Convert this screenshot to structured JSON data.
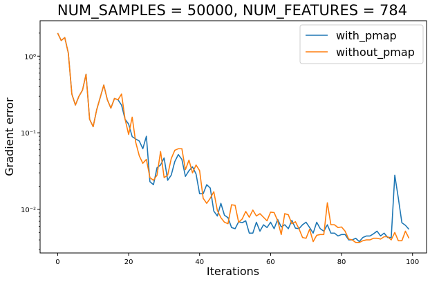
{
  "chart_data": {
    "type": "line",
    "title": "NUM_SAMPLES = 50000, NUM_FEATURES = 784",
    "xlabel": "Iterations",
    "ylabel": "Gradient error",
    "xscale": "linear",
    "yscale": "log",
    "xlim": [
      -4.95,
      103.95
    ],
    "ylim": [
      0.0027,
      2.9
    ],
    "xticks": [
      0,
      20,
      40,
      60,
      80,
      100
    ],
    "xtick_labels": [
      "0",
      "20",
      "40",
      "60",
      "80",
      "100"
    ],
    "yticks": [
      0.01,
      0.1,
      1
    ],
    "ytick_labels": [
      "10⁻²",
      "10⁻¹",
      "10⁰"
    ],
    "grid": false,
    "legend_position": "upper right",
    "x": [
      0,
      1,
      2,
      3,
      4,
      5,
      6,
      7,
      8,
      9,
      10,
      11,
      12,
      13,
      14,
      15,
      16,
      17,
      18,
      19,
      20,
      21,
      22,
      23,
      24,
      25,
      26,
      27,
      28,
      29,
      30,
      31,
      32,
      33,
      34,
      35,
      36,
      37,
      38,
      39,
      40,
      41,
      42,
      43,
      44,
      45,
      46,
      47,
      48,
      49,
      50,
      51,
      52,
      53,
      54,
      55,
      56,
      57,
      58,
      59,
      60,
      61,
      62,
      63,
      64,
      65,
      66,
      67,
      68,
      69,
      70,
      71,
      72,
      73,
      74,
      75,
      76,
      77,
      78,
      79,
      80,
      81,
      82,
      83,
      84,
      85,
      86,
      87,
      88,
      89,
      90,
      91,
      92,
      93,
      94,
      95,
      96,
      97,
      98,
      99
    ],
    "series": [
      {
        "name": "with_pmap",
        "color": "#1f77b4",
        "values": [
          2.0,
          1.6,
          1.75,
          1.1,
          0.32,
          0.23,
          0.3,
          0.36,
          0.58,
          0.15,
          0.12,
          0.2,
          0.29,
          0.42,
          0.27,
          0.21,
          0.28,
          0.27,
          0.23,
          0.15,
          0.13,
          0.089,
          0.083,
          0.078,
          0.062,
          0.09,
          0.023,
          0.021,
          0.035,
          0.038,
          0.047,
          0.024,
          0.028,
          0.042,
          0.052,
          0.045,
          0.027,
          0.032,
          0.036,
          0.029,
          0.016,
          0.016,
          0.021,
          0.019,
          0.0095,
          0.0082,
          0.012,
          0.0084,
          0.0078,
          0.0058,
          0.0056,
          0.0069,
          0.0067,
          0.0071,
          0.0049,
          0.0049,
          0.0068,
          0.0052,
          0.0063,
          0.0058,
          0.0068,
          0.0056,
          0.0074,
          0.0059,
          0.0063,
          0.0056,
          0.0072,
          0.0057,
          0.0056,
          0.0063,
          0.0068,
          0.0058,
          0.0049,
          0.0068,
          0.0056,
          0.0052,
          0.0063,
          0.0049,
          0.0049,
          0.0045,
          0.0047,
          0.0047,
          0.004,
          0.004,
          0.0042,
          0.0038,
          0.0043,
          0.0045,
          0.0045,
          0.0048,
          0.0052,
          0.0045,
          0.0049,
          0.0043,
          0.0043,
          0.028,
          0.014,
          0.0067,
          0.0062,
          0.0055
        ]
      },
      {
        "name": "without_pmap",
        "color": "#ff7f0e",
        "values": [
          2.0,
          1.6,
          1.75,
          1.1,
          0.32,
          0.23,
          0.3,
          0.36,
          0.58,
          0.15,
          0.12,
          0.2,
          0.29,
          0.42,
          0.27,
          0.21,
          0.28,
          0.27,
          0.32,
          0.15,
          0.095,
          0.16,
          0.075,
          0.05,
          0.04,
          0.045,
          0.026,
          0.024,
          0.028,
          0.057,
          0.026,
          0.028,
          0.046,
          0.059,
          0.062,
          0.062,
          0.033,
          0.044,
          0.03,
          0.038,
          0.032,
          0.014,
          0.012,
          0.014,
          0.017,
          0.0097,
          0.0078,
          0.0068,
          0.0065,
          0.0115,
          0.0113,
          0.0068,
          0.0075,
          0.0094,
          0.0079,
          0.0098,
          0.0082,
          0.0088,
          0.0079,
          0.0071,
          0.0092,
          0.0091,
          0.0071,
          0.0047,
          0.0088,
          0.0085,
          0.0065,
          0.0069,
          0.0056,
          0.0043,
          0.0042,
          0.0055,
          0.0038,
          0.0046,
          0.0047,
          0.0047,
          0.0122,
          0.0063,
          0.0063,
          0.0058,
          0.0059,
          0.0052,
          0.0041,
          0.004,
          0.0037,
          0.0037,
          0.0039,
          0.004,
          0.004,
          0.0042,
          0.0042,
          0.0041,
          0.0044,
          0.0044,
          0.004,
          0.005,
          0.0039,
          0.0039,
          0.0052,
          0.0042
        ]
      }
    ]
  }
}
